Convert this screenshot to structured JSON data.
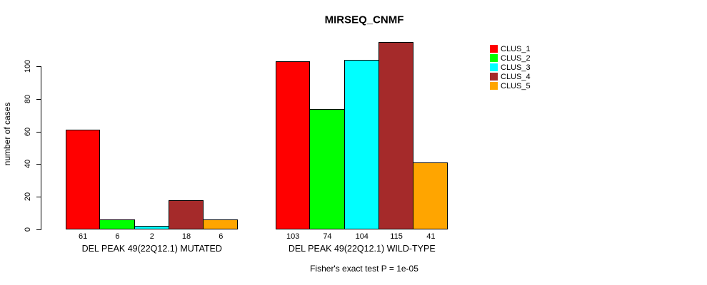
{
  "chart_data": {
    "type": "bar",
    "title": "MIRSEQ_CNMF",
    "ylabel": "number of cases",
    "xlabel": "",
    "ylim": [
      0,
      115
    ],
    "yticks": [
      0,
      20,
      40,
      60,
      80,
      100
    ],
    "grid": false,
    "background": "#ffffff",
    "bar_border_color": "#000000",
    "legend_position": "right",
    "legend": [
      {
        "label": "CLUS_1",
        "color": "#FF0000"
      },
      {
        "label": "CLUS_2",
        "color": "#00FF00"
      },
      {
        "label": "CLUS_3",
        "color": "#00FFFF"
      },
      {
        "label": "CLUS_4",
        "color": "#A52A2A"
      },
      {
        "label": "CLUS_5",
        "color": "#FFA500"
      }
    ],
    "groups": [
      {
        "label": "DEL PEAK 49(22Q12.1) MUTATED",
        "values": [
          61,
          6,
          2,
          18,
          6
        ]
      },
      {
        "label": "DEL PEAK 49(22Q12.1) WILD-TYPE",
        "values": [
          103,
          74,
          104,
          115,
          41
        ]
      }
    ],
    "caption": "Fisher's exact test P = 1e-05"
  }
}
